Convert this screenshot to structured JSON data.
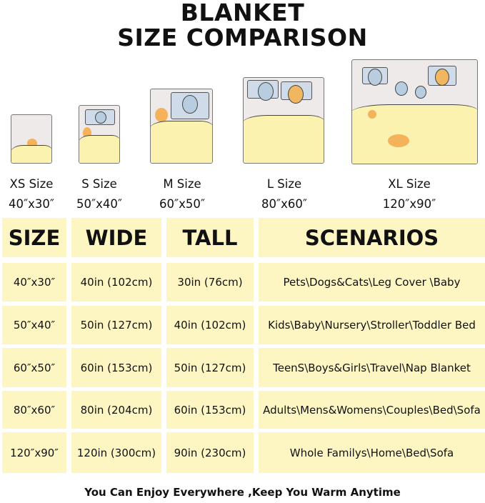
{
  "title": {
    "line1": "BLANKET",
    "line2": "SIZE COMPARISON"
  },
  "sizes": [
    {
      "name": "XS Size",
      "dims": "40″x30″"
    },
    {
      "name": "S Size",
      "dims": "50″x40″"
    },
    {
      "name": "M Size",
      "dims": "60″x50″"
    },
    {
      "name": "L Size",
      "dims": "80″x60″"
    },
    {
      "name": "XL Size",
      "dims": "120″x90″"
    }
  ],
  "table": {
    "headers": [
      "SIZE",
      "WIDE",
      "TALL",
      "SCENARIOS"
    ],
    "rows": [
      [
        "40″x30″",
        "40in (102cm)",
        "30in (76cm)",
        "Pets\\Dogs&Cats\\Leg Cover \\Baby"
      ],
      [
        "50″x40″",
        "50in (127cm)",
        "40in (102cm)",
        "Kids\\Baby\\Nursery\\Stroller\\Toddler Bed"
      ],
      [
        "60″x50″",
        "60in (153cm)",
        "50in (127cm)",
        "TeenS\\Boys&Girls\\Travel\\Nap Blanket"
      ],
      [
        "80″x60″",
        "80in (204cm)",
        "60in (153cm)",
        "Adults\\Mens&Womens\\Couples\\Bed\\Sofa"
      ],
      [
        "120″x90″",
        "120in (300cm)",
        "90in (230cm)",
        "Whole Familys\\Home\\Bed\\Sofa"
      ]
    ]
  },
  "footer": "You Can Enjoy Everywhere ,Keep You Warm Anytime",
  "colors": {
    "cell_bg": "#fdf6c3",
    "blanket": "#fbf2b0"
  }
}
